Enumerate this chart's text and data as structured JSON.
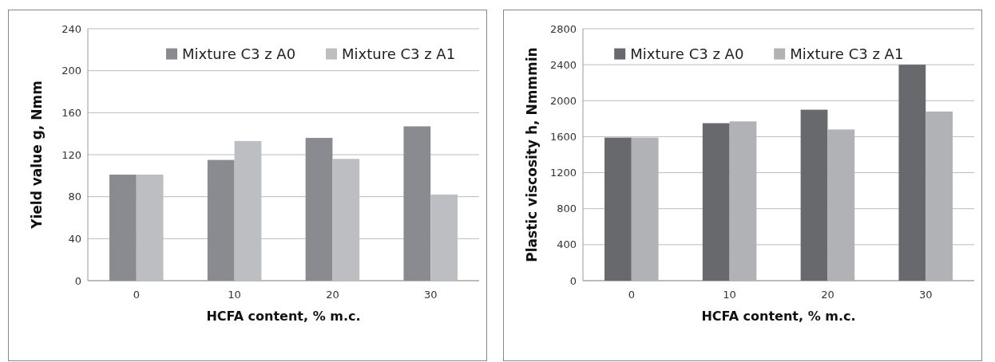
{
  "chart_data": [
    {
      "type": "bar",
      "categories": [
        "0",
        "10",
        "20",
        "30"
      ],
      "xlabel": "HCFA content, % m.c.",
      "ylabel": "Yield value g, Nmm",
      "series": [
        {
          "name": "Mixture C3 z A0",
          "color": "#8a8b90",
          "values": [
            101,
            115,
            136,
            147
          ]
        },
        {
          "name": "Mixture C3 z A1",
          "color": "#bcbec2",
          "values": [
            101,
            133,
            116,
            82
          ]
        }
      ],
      "ylim": [
        0,
        240
      ],
      "yticks": [
        0,
        40,
        80,
        120,
        160,
        200,
        240
      ],
      "grid": "y",
      "legend": "top right"
    },
    {
      "type": "bar",
      "categories": [
        "0",
        "10",
        "20",
        "30"
      ],
      "xlabel": "HCFA content, % m.c.",
      "ylabel": "Plastic viscosity h, Nmmmin",
      "series": [
        {
          "name": "Mixture C3 z A0",
          "color": "#68696d",
          "values": [
            1590,
            1750,
            1900,
            2400
          ]
        },
        {
          "name": "Mixture C3 z A1",
          "color": "#b1b2b5",
          "values": [
            1590,
            1770,
            1680,
            1880
          ]
        }
      ],
      "ylim": [
        0,
        2800
      ],
      "yticks": [
        0,
        400,
        800,
        1200,
        1600,
        2000,
        2400,
        2800
      ],
      "grid": "y",
      "legend": "top"
    }
  ]
}
